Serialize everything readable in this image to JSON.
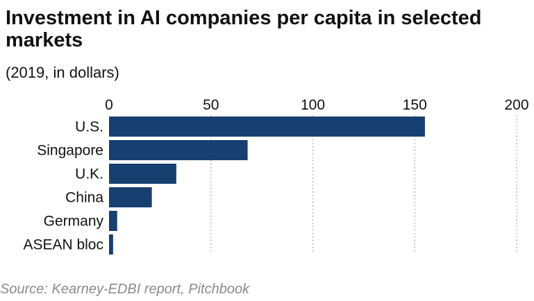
{
  "title": "Investment in AI companies per capita in selected markets",
  "subtitle": "(2019, in dollars)",
  "source": "Source: Kearney-EDBI report, Pitchbook",
  "colors": {
    "bar": "#173f6f",
    "grid": "#9a9a9a",
    "source": "#8a8a8a"
  },
  "chart_data": {
    "type": "bar",
    "orientation": "horizontal",
    "title": "Investment in AI companies per capita in selected markets",
    "subtitle": "(2019, in dollars)",
    "categories": [
      "U.S.",
      "Singapore",
      "U.K.",
      "China",
      "Germany",
      "ASEAN bloc"
    ],
    "values": [
      155,
      68,
      33,
      21,
      4,
      2
    ],
    "xlim": [
      0,
      200
    ],
    "xticks": [
      0,
      50,
      100,
      150,
      200
    ],
    "tick_position": "top",
    "grid": true,
    "legend": "none"
  }
}
